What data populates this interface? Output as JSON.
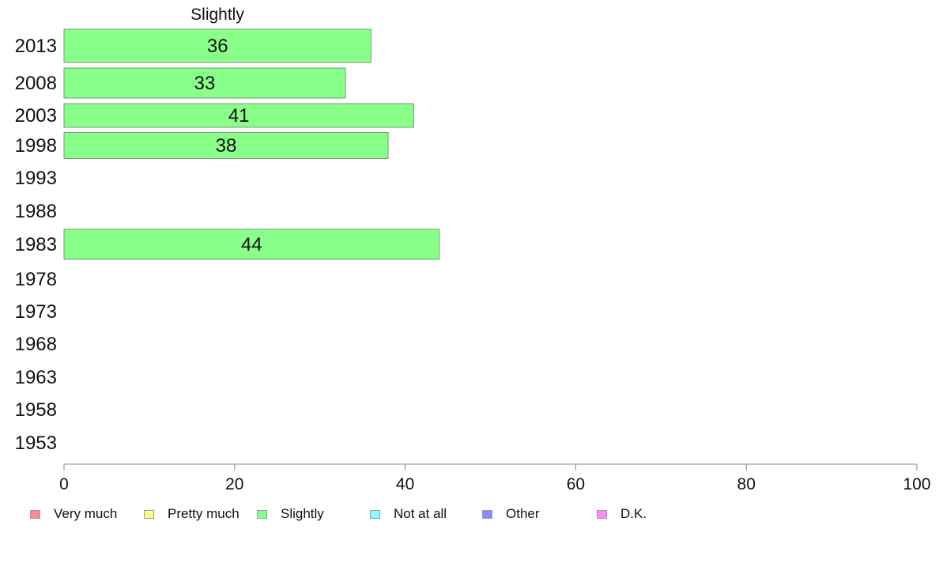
{
  "chart_data": {
    "type": "bar",
    "orientation": "horizontal",
    "title": "Slightly",
    "categories": [
      "2013",
      "2008",
      "2003",
      "1998",
      "1993",
      "1988",
      "1983",
      "1978",
      "1973",
      "1968",
      "1963",
      "1958",
      "1953"
    ],
    "series": [
      {
        "name": "Slightly",
        "color": "#88FF88",
        "values": [
          36,
          33,
          41,
          38,
          null,
          null,
          44,
          null,
          null,
          null,
          null,
          null,
          null
        ]
      }
    ],
    "xlim": [
      0,
      100
    ],
    "xticks": [
      "0",
      "20",
      "40",
      "60",
      "80",
      "100"
    ],
    "grid": false,
    "legend_position": "bottom",
    "legend": [
      {
        "label": "Very much",
        "color": "#FF8888"
      },
      {
        "label": "Pretty much",
        "color": "#FFFF88"
      },
      {
        "label": "Slightly",
        "color": "#88FF88"
      },
      {
        "label": "Not at all",
        "color": "#88FFFF"
      },
      {
        "label": "Other",
        "color": "#8888FF"
      },
      {
        "label": "D.K.",
        "color": "#FF88FF"
      }
    ]
  }
}
